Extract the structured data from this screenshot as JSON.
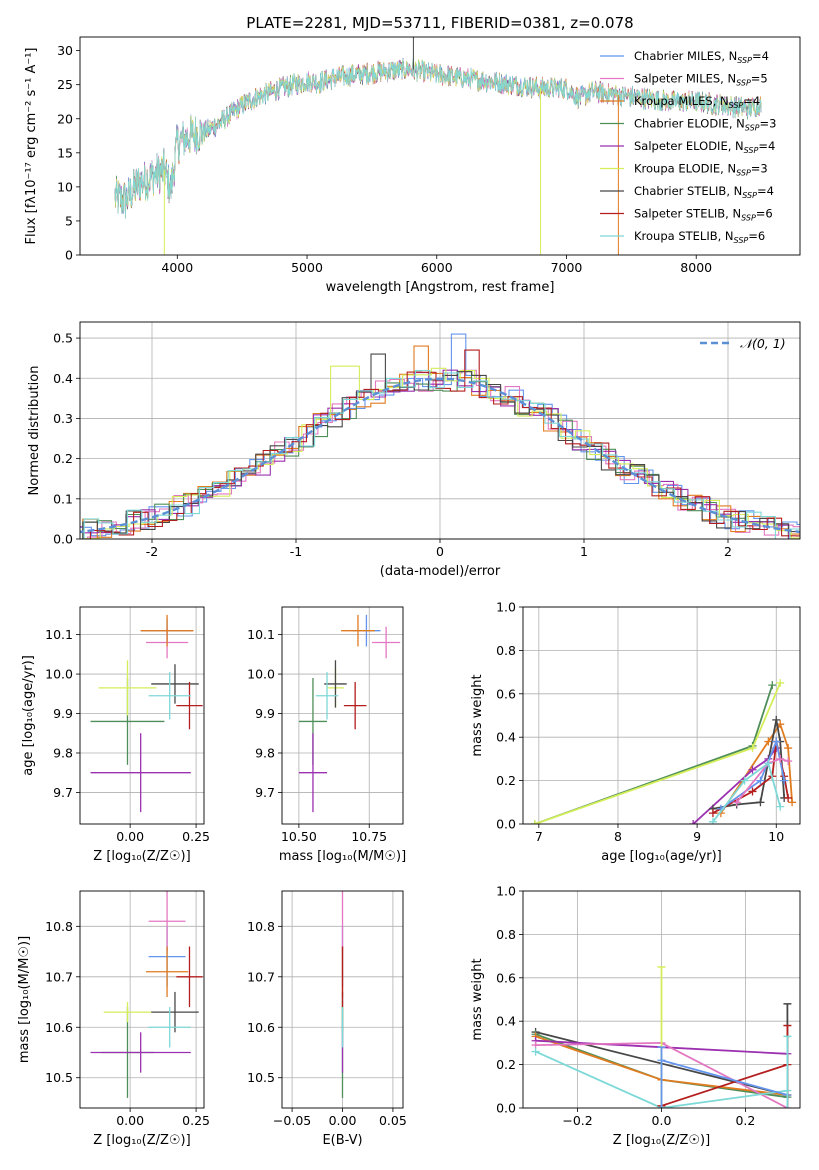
{
  "palette": {
    "chabrier_miles": "#6495ED",
    "salpeter_miles": "#E377C2",
    "kroupa_miles": "#E07B20",
    "chabrier_elodie": "#4E8E58",
    "salpeter_elodie": "#9B30B0",
    "kroupa_elodie": "#D4EE5A",
    "chabrier_stelib": "#474747",
    "salpeter_stelib": "#B41E1E",
    "kroupa_stelib": "#7DD8D8",
    "normal_curve": "#5B8FD6"
  },
  "chart_data": [
    {
      "id": "spectrum",
      "type": "line",
      "title": "PLATE=2281, MJD=53711, FIBERID=0381, z=0.078",
      "xlabel": "wavelength [Angstrom, rest frame]",
      "ylabel": "Flux [fλ10⁻¹⁷ erg cm⁻² s⁻¹ A⁻¹]",
      "xlim": [
        3250,
        8800
      ],
      "ylim": [
        0,
        32
      ],
      "xticks": [
        4000,
        5000,
        6000,
        7000,
        8000
      ],
      "yticks": [
        0,
        5,
        10,
        15,
        20,
        25,
        30
      ],
      "grid": false,
      "legend_position": "top-right",
      "continuum": {
        "x": [
          3520,
          3600,
          3700,
          3800,
          3900,
          3950,
          4000,
          4100,
          4200,
          4300,
          4400,
          4500,
          4600,
          4700,
          4800,
          4900,
          5000,
          5100,
          5200,
          5400,
          5600,
          5800,
          6000,
          6200,
          6400,
          6600,
          6800,
          7000,
          7100,
          7200,
          7400,
          7600,
          7800,
          8000,
          8200,
          8400,
          8500
        ],
        "y": [
          8.5,
          8.0,
          10.5,
          11.5,
          12.5,
          9.5,
          16.5,
          17.5,
          18.0,
          19.0,
          20.5,
          22.0,
          23.0,
          23.8,
          24.5,
          25.0,
          25.5,
          25.3,
          26.0,
          26.5,
          27.0,
          27.3,
          26.5,
          26.0,
          25.5,
          25.0,
          24.5,
          24.5,
          23.0,
          24.0,
          23.5,
          23.0,
          22.5,
          22.5,
          22.0,
          21.5,
          22.0
        ]
      },
      "noise_amplitude": 1.3,
      "spikes": [
        {
          "x": 3900,
          "y": 0,
          "series": "kroupa_elodie"
        },
        {
          "x": 5820,
          "y": 32,
          "series": "chabrier_stelib"
        },
        {
          "x": 6800,
          "y": 0,
          "series": "kroupa_elodie"
        },
        {
          "x": 7400,
          "y": 0,
          "series": "kroupa_miles"
        }
      ],
      "series": [
        {
          "key": "chabrier_miles",
          "name": "Chabrier MILES, N",
          "sub": "SSP",
          "tail": "=4"
        },
        {
          "key": "salpeter_miles",
          "name": "Salpeter MILES, N",
          "sub": "SSP",
          "tail": "=5"
        },
        {
          "key": "kroupa_miles",
          "name": "Kroupa MILES, N",
          "sub": "SSP",
          "tail": "=4"
        },
        {
          "key": "chabrier_elodie",
          "name": "Chabrier ELODIE, N",
          "sub": "SSP",
          "tail": "=3"
        },
        {
          "key": "salpeter_elodie",
          "name": "Salpeter ELODIE, N",
          "sub": "SSP",
          "tail": "=4"
        },
        {
          "key": "kroupa_elodie",
          "name": "Kroupa ELODIE, N",
          "sub": "SSP",
          "tail": "=3"
        },
        {
          "key": "chabrier_stelib",
          "name": "Chabrier STELIB, N",
          "sub": "SSP",
          "tail": "=4"
        },
        {
          "key": "salpeter_stelib",
          "name": "Salpeter STELIB, N",
          "sub": "SSP",
          "tail": "=6"
        },
        {
          "key": "kroupa_stelib",
          "name": "Kroupa STELIB, N",
          "sub": "SSP",
          "tail": "=6"
        }
      ]
    },
    {
      "id": "residuals",
      "type": "histogram",
      "xlabel": "(data-model)/error",
      "ylabel": "Normed distribution",
      "xlim": [
        -2.5,
        2.5
      ],
      "ylim": [
        0,
        0.54
      ],
      "xticks": [
        -2,
        -1,
        0,
        1,
        2
      ],
      "yticks": [
        0.0,
        0.1,
        0.2,
        0.3,
        0.4,
        0.5
      ],
      "bin_width": 0.1,
      "grid": true,
      "legend_position": "top-right",
      "legend": "𝒩(0, 1)",
      "normal_curve": {
        "mean": 0,
        "sigma": 1,
        "style": "dashed"
      },
      "peak_overrides": [
        {
          "series": "chabrier_miles",
          "x": 0.15,
          "y": 0.51
        },
        {
          "series": "kroupa_elodie",
          "x": -0.65,
          "y": 0.43
        },
        {
          "series": "kroupa_miles",
          "x": -0.15,
          "y": 0.48
        },
        {
          "series": "salpeter_stelib",
          "x": 0.25,
          "y": 0.47
        },
        {
          "series": "chabrier_stelib",
          "x": -0.45,
          "y": 0.46
        }
      ]
    },
    {
      "id": "age_vs_z",
      "type": "errorbar",
      "xlabel": "Z [log₁₀(Z/Z☉)]",
      "ylabel": "age  [log₁₀(age/yr)]",
      "xlim": [
        -0.19,
        0.28
      ],
      "ylim": [
        9.62,
        10.17
      ],
      "xticks": [
        0.0,
        0.25
      ],
      "xticklabels": [
        "0.00",
        "0.25"
      ],
      "yticks": [
        9.7,
        9.8,
        9.9,
        10.0,
        10.1
      ],
      "yticklabels": [
        "9.7",
        "9.8",
        "9.9",
        "10.0",
        "10.1"
      ],
      "grid": true,
      "points": [
        {
          "series": "chabrier_miles",
          "x": 0.14,
          "y": 10.11,
          "xerr": 0.1,
          "yerr": 0.03
        },
        {
          "series": "salpeter_miles",
          "x": 0.14,
          "y": 10.08,
          "xerr": 0.08,
          "yerr": 0.04
        },
        {
          "series": "kroupa_miles",
          "x": 0.14,
          "y": 10.11,
          "xerr": 0.1,
          "yerr": 0.04
        },
        {
          "series": "chabrier_elodie",
          "x": -0.01,
          "y": 9.88,
          "xerr": 0.14,
          "yerr": 0.11
        },
        {
          "series": "salpeter_elodie",
          "x": 0.04,
          "y": 9.75,
          "xerr": 0.19,
          "yerr": 0.1
        },
        {
          "series": "kroupa_elodie",
          "x": -0.01,
          "y": 9.965,
          "xerr": 0.11,
          "yerr": 0.07
        },
        {
          "series": "chabrier_stelib",
          "x": 0.17,
          "y": 9.975,
          "xerr": 0.09,
          "yerr": 0.05
        },
        {
          "series": "salpeter_stelib",
          "x": 0.225,
          "y": 9.92,
          "xerr": 0.05,
          "yerr": 0.06
        },
        {
          "series": "kroupa_stelib",
          "x": 0.15,
          "y": 9.945,
          "xerr": 0.08,
          "yerr": 0.06
        }
      ]
    },
    {
      "id": "age_vs_mass",
      "type": "errorbar",
      "xlabel": "mass [log₁₀(M/M☉)]",
      "ylabel": "",
      "xlim": [
        10.44,
        10.87
      ],
      "ylim": [
        9.62,
        10.17
      ],
      "xticks": [
        10.5,
        10.75
      ],
      "xticklabels": [
        "10.50",
        "10.75"
      ],
      "yticks": [
        9.7,
        9.8,
        9.9,
        10.0,
        10.1
      ],
      "yticklabels": [
        "9.7",
        "9.8",
        "9.9",
        "10.0",
        "10.1"
      ],
      "grid": true,
      "points": [
        {
          "series": "chabrier_miles",
          "x": 10.74,
          "y": 10.11,
          "xerr": 0.05,
          "yerr": 0.04
        },
        {
          "series": "salpeter_miles",
          "x": 10.81,
          "y": 10.08,
          "xerr": 0.05,
          "yerr": 0.04
        },
        {
          "series": "kroupa_miles",
          "x": 10.71,
          "y": 10.11,
          "xerr": 0.06,
          "yerr": 0.04
        },
        {
          "series": "chabrier_elodie",
          "x": 10.55,
          "y": 9.88,
          "xerr": 0.05,
          "yerr": 0.11
        },
        {
          "series": "salpeter_elodie",
          "x": 10.55,
          "y": 9.75,
          "xerr": 0.05,
          "yerr": 0.1
        },
        {
          "series": "kroupa_elodie",
          "x": 10.63,
          "y": 9.965,
          "xerr": 0.03,
          "yerr": 0.05
        },
        {
          "series": "chabrier_stelib",
          "x": 10.63,
          "y": 9.975,
          "xerr": 0.04,
          "yerr": 0.06
        },
        {
          "series": "salpeter_stelib",
          "x": 10.7,
          "y": 9.92,
          "xerr": 0.04,
          "yerr": 0.06
        },
        {
          "series": "kroupa_stelib",
          "x": 10.6,
          "y": 9.945,
          "xerr": 0.04,
          "yerr": 0.06
        }
      ]
    },
    {
      "id": "weight_vs_age",
      "type": "line",
      "xlabel": "age  [log₁₀(age/yr)]",
      "ylabel": "mass weight",
      "xlim": [
        6.8,
        10.3
      ],
      "ylim": [
        0,
        1.0
      ],
      "xticks": [
        7,
        8,
        9,
        10
      ],
      "xticklabels": [
        "7",
        "8",
        "9",
        "10"
      ],
      "yticks": [
        0.0,
        0.2,
        0.4,
        0.6,
        0.8,
        1.0
      ],
      "yticklabels": [
        "0.0",
        "0.2",
        "0.4",
        "0.6",
        "0.8",
        "1.0"
      ],
      "grid": true,
      "series": [
        {
          "series": "chabrier_elodie",
          "x": [
            6.95,
            9.7,
            9.95
          ],
          "y": [
            0.0,
            0.36,
            0.64
          ]
        },
        {
          "series": "kroupa_elodie",
          "x": [
            6.95,
            9.7,
            10.05
          ],
          "y": [
            0.0,
            0.35,
            0.65
          ]
        },
        {
          "series": "kroupa_miles",
          "x": [
            9.3,
            9.9,
            10.05,
            10.15,
            10.2
          ],
          "y": [
            0.05,
            0.38,
            0.46,
            0.35,
            0.1
          ]
        },
        {
          "series": "salpeter_elodie",
          "x": [
            8.95,
            9.7,
            9.9,
            10.0
          ],
          "y": [
            0.0,
            0.25,
            0.3,
            0.35
          ]
        },
        {
          "series": "chabrier_stelib",
          "x": [
            9.2,
            9.5,
            9.8,
            10.0,
            10.05,
            10.1
          ],
          "y": [
            0.07,
            0.09,
            0.1,
            0.48,
            0.38,
            0.12
          ]
        },
        {
          "series": "salpeter_stelib",
          "x": [
            9.2,
            9.7,
            9.95,
            10.0,
            10.1,
            10.15
          ],
          "y": [
            0.05,
            0.15,
            0.22,
            0.38,
            0.22,
            0.12
          ]
        },
        {
          "series": "chabrier_miles",
          "x": [
            9.3,
            9.8,
            10.0,
            10.1
          ],
          "y": [
            0.07,
            0.2,
            0.38,
            0.2
          ]
        },
        {
          "series": "salpeter_miles",
          "x": [
            9.5,
            9.9,
            10.05,
            10.15
          ],
          "y": [
            0.1,
            0.28,
            0.3,
            0.29
          ]
        },
        {
          "series": "kroupa_stelib",
          "x": [
            9.2,
            9.6,
            9.9,
            10.05
          ],
          "y": [
            0.01,
            0.2,
            0.28,
            0.08
          ]
        }
      ]
    },
    {
      "id": "mass_vs_z",
      "type": "errorbar",
      "xlabel": "Z [log₁₀(Z/Z☉)]",
      "ylabel": "mass [log₁₀(M/M☉)]",
      "xlim": [
        -0.19,
        0.28
      ],
      "ylim": [
        10.44,
        10.87
      ],
      "xticks": [
        0.0,
        0.25
      ],
      "xticklabels": [
        "0.00",
        "0.25"
      ],
      "yticks": [
        10.5,
        10.6,
        10.7,
        10.8
      ],
      "yticklabels": [
        "10.5",
        "10.6",
        "10.7",
        "10.8"
      ],
      "grid": true,
      "points": [
        {
          "series": "chabrier_miles",
          "x": 0.14,
          "y": 10.74,
          "xerr": 0.07,
          "yerr": 0.06
        },
        {
          "series": "salpeter_miles",
          "x": 0.14,
          "y": 10.81,
          "xerr": 0.07,
          "yerr": 0.06
        },
        {
          "series": "kroupa_miles",
          "x": 0.14,
          "y": 10.71,
          "xerr": 0.08,
          "yerr": 0.05
        },
        {
          "series": "chabrier_elodie",
          "x": -0.01,
          "y": 10.55,
          "xerr": 0.1,
          "yerr": 0.09
        },
        {
          "series": "salpeter_elodie",
          "x": 0.04,
          "y": 10.55,
          "xerr": 0.19,
          "yerr": 0.04
        },
        {
          "series": "kroupa_elodie",
          "x": -0.01,
          "y": 10.63,
          "xerr": 0.09,
          "yerr": 0.02
        },
        {
          "series": "chabrier_stelib",
          "x": 0.17,
          "y": 10.63,
          "xerr": 0.09,
          "yerr": 0.04
        },
        {
          "series": "salpeter_stelib",
          "x": 0.225,
          "y": 10.7,
          "xerr": 0.05,
          "yerr": 0.06
        },
        {
          "series": "kroupa_stelib",
          "x": 0.15,
          "y": 10.6,
          "xerr": 0.08,
          "yerr": 0.04
        }
      ]
    },
    {
      "id": "mass_vs_ebv",
      "type": "errorbar",
      "xlabel": "E(B-V)",
      "ylabel": "",
      "xlim": [
        -0.06,
        0.06
      ],
      "ylim": [
        10.44,
        10.87
      ],
      "xticks": [
        -0.05,
        0.0,
        0.05
      ],
      "xticklabels": [
        "−0.05",
        "0.00",
        "0.05"
      ],
      "yticks": [
        10.5,
        10.6,
        10.7,
        10.8
      ],
      "yticklabels": [
        "10.5",
        "10.6",
        "10.7",
        "10.8"
      ],
      "grid": true,
      "points": [
        {
          "series": "chabrier_miles",
          "x": 0.0,
          "y": 10.74,
          "xerr": 0.0,
          "yerr": 0.06
        },
        {
          "series": "salpeter_miles",
          "x": 0.0,
          "y": 10.81,
          "xerr": 0.0,
          "yerr": 0.06
        },
        {
          "series": "kroupa_miles",
          "x": 0.0,
          "y": 10.71,
          "xerr": 0.0,
          "yerr": 0.05
        },
        {
          "series": "chabrier_elodie",
          "x": 0.0,
          "y": 10.55,
          "xerr": 0.0,
          "yerr": 0.09
        },
        {
          "series": "salpeter_elodie",
          "x": 0.0,
          "y": 10.55,
          "xerr": 0.0,
          "yerr": 0.04
        },
        {
          "series": "kroupa_elodie",
          "x": 0.0,
          "y": 10.63,
          "xerr": 0.0,
          "yerr": 0.02
        },
        {
          "series": "chabrier_stelib",
          "x": 0.0,
          "y": 10.63,
          "xerr": 0.0,
          "yerr": 0.04
        },
        {
          "series": "salpeter_stelib",
          "x": 0.0,
          "y": 10.7,
          "xerr": 0.0,
          "yerr": 0.06
        },
        {
          "series": "kroupa_stelib",
          "x": 0.0,
          "y": 10.6,
          "xerr": 0.0,
          "yerr": 0.04
        }
      ]
    },
    {
      "id": "weight_vs_z",
      "type": "line",
      "xlabel": "Z [log₁₀(Z/Z☉)]",
      "ylabel": "mass weight",
      "xlim": [
        -0.33,
        0.33
      ],
      "ylim": [
        0,
        1.0
      ],
      "xticks": [
        -0.2,
        0.0,
        0.2
      ],
      "xticklabels": [
        "−0.2",
        "0.0",
        "0.2"
      ],
      "yticks": [
        0.0,
        0.2,
        0.4,
        0.6,
        0.8,
        1.0
      ],
      "yticklabels": [
        "0.0",
        "0.2",
        "0.4",
        "0.6",
        "0.8",
        "1.0"
      ],
      "grid": true,
      "series": [
        {
          "series": "chabrier_stelib",
          "x": [
            -0.3,
            0.3
          ],
          "y": [
            0.35,
            0.06
          ]
        },
        {
          "series": "chabrier_elodie",
          "x": [
            -0.3,
            0.0,
            0.3
          ],
          "y": [
            0.34,
            0.13,
            0.05
          ]
        },
        {
          "series": "kroupa_miles",
          "x": [
            -0.3,
            0.0,
            0.3
          ],
          "y": [
            0.33,
            0.13,
            0.06
          ]
        },
        {
          "series": "salpeter_elodie",
          "x": [
            -0.3,
            0.0,
            0.3
          ],
          "y": [
            0.31,
            0.28,
            0.25
          ]
        },
        {
          "series": "salpeter_miles",
          "x": [
            -0.3,
            0.0,
            0.3
          ],
          "y": [
            0.29,
            0.3,
            0.0
          ]
        },
        {
          "series": "kroupa_stelib",
          "x": [
            -0.3,
            0.0,
            0.3
          ],
          "y": [
            0.26,
            0.0,
            0.08
          ]
        },
        {
          "series": "salpeter_stelib",
          "x": [
            0.0,
            0.3
          ],
          "y": [
            0.01,
            0.2
          ]
        },
        {
          "series": "chabrier_miles",
          "x": [
            0.0,
            0.3
          ],
          "y": [
            0.22,
            0.06
          ]
        }
      ],
      "vertical_errors": [
        {
          "series": "kroupa_elodie",
          "x": 0.0,
          "ylow": 0.0,
          "yhigh": 0.65
        },
        {
          "series": "chabrier_miles",
          "x": 0.0,
          "ylow": 0.0,
          "yhigh": 0.28
        },
        {
          "series": "chabrier_stelib",
          "x": 0.3,
          "ylow": 0.0,
          "yhigh": 0.48
        },
        {
          "series": "salpeter_stelib",
          "x": 0.3,
          "ylow": 0.0,
          "yhigh": 0.38
        },
        {
          "series": "kroupa_stelib",
          "x": 0.3,
          "ylow": 0.0,
          "yhigh": 0.33
        }
      ]
    }
  ]
}
